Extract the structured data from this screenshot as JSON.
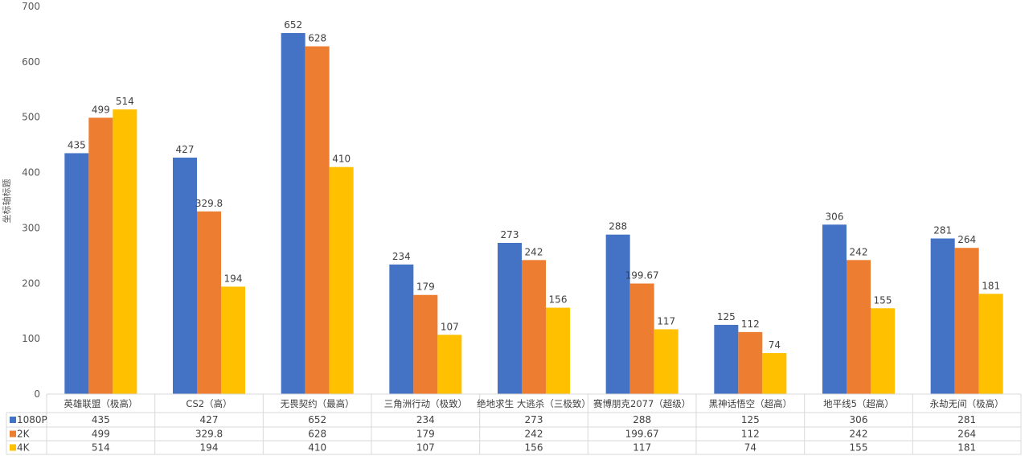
{
  "chart_data": {
    "type": "bar",
    "title": "",
    "xlabel": "",
    "ylabel": "坐标轴标题",
    "ylim": [
      0,
      700
    ],
    "yticks": [
      0,
      100,
      200,
      300,
      400,
      500,
      600,
      700
    ],
    "grid": false,
    "legend": "data-table",
    "categories": [
      "英雄联盟（极高）",
      "CS2（高）",
      "无畏契约（最高）",
      "三角洲行动（极致）",
      "绝地求生 大逃杀（三极致）",
      "赛博朋克2077（超级）",
      "黑神话悟空（超高）",
      "地平线5（超高）",
      "永劫无间（极高）"
    ],
    "series": [
      {
        "name": "1080P",
        "color": "#4472c4",
        "values": [
          435,
          427,
          652,
          234,
          273,
          288,
          125,
          306,
          281
        ]
      },
      {
        "name": "2K",
        "color": "#ed7d31",
        "values": [
          499,
          329.8,
          628,
          179,
          242,
          199.67,
          112,
          242,
          264
        ]
      },
      {
        "name": "4K",
        "color": "#ffc000",
        "values": [
          514,
          194,
          410,
          107,
          156,
          117,
          74,
          155,
          181
        ]
      }
    ]
  }
}
